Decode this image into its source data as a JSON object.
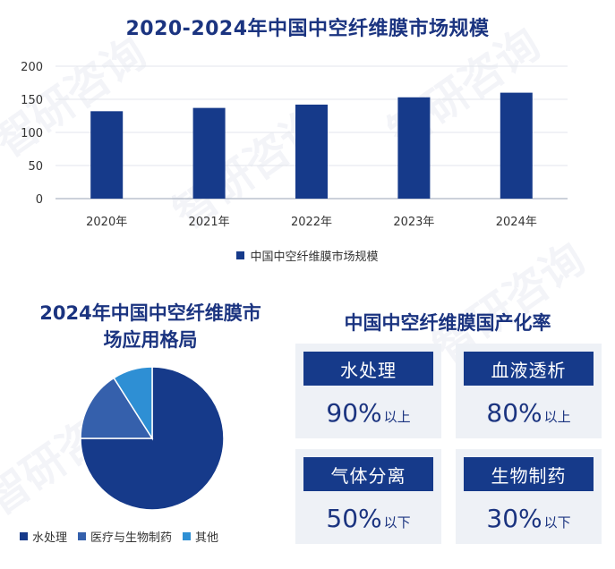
{
  "watermark": "智研咨询",
  "bar_section": {
    "legend_label": "中国中空纤维膜市场规模"
  },
  "pie_section": {
    "title_line1": "2024年中国中空纤维膜市",
    "title_line2": "场应用格局"
  },
  "rate_section": {
    "title": "中国中空纤维膜国产化率",
    "cards": [
      {
        "label": "水处理",
        "value": "90%",
        "suffix": "以上"
      },
      {
        "label": "血液透析",
        "value": "80%",
        "suffix": "以上"
      },
      {
        "label": "气体分离",
        "value": "50%",
        "suffix": "以下"
      },
      {
        "label": "生物制药",
        "value": "30%",
        "suffix": "以下"
      }
    ]
  },
  "chart_data": [
    {
      "type": "bar",
      "title": "2020-2024年中国中空纤维膜市场规模",
      "categories": [
        "2020年",
        "2021年",
        "2022年",
        "2023年",
        "2024年"
      ],
      "series": [
        {
          "name": "中国中空纤维膜市场规模",
          "values": [
            132,
            137,
            142,
            153,
            160
          ],
          "color": "#163a8a"
        }
      ],
      "ylim": [
        0,
        200
      ],
      "yticks": [
        0,
        50,
        100,
        150,
        200
      ],
      "grid": true,
      "legend": "bottom"
    },
    {
      "type": "pie",
      "title": "2024年中国中空纤维膜市场应用格局",
      "labels": [
        "水处理",
        "医疗与生物制药",
        "其他"
      ],
      "values": [
        75,
        16,
        9
      ],
      "colors": [
        "#163a8a",
        "#3560ac",
        "#2e8fd4"
      ],
      "legend": "bottom"
    }
  ]
}
